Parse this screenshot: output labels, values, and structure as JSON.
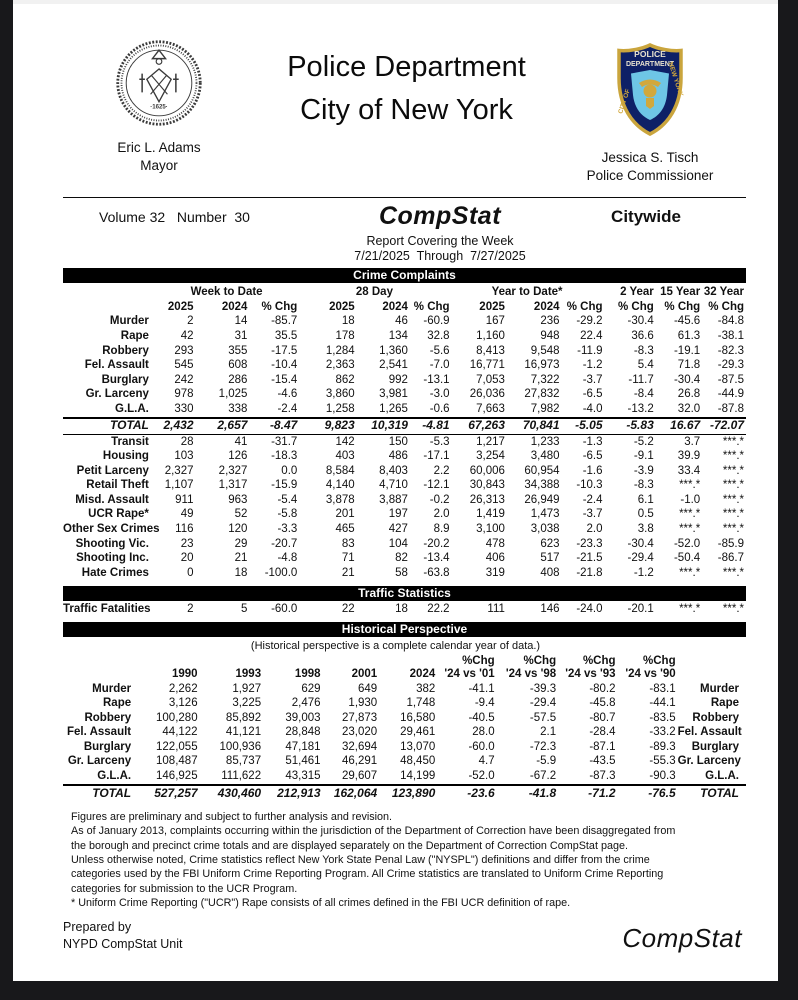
{
  "colors": {
    "seal_gray": "#3a3a3a",
    "patch_navy": "#0e2066",
    "patch_gold": "#d2a83c",
    "patch_light_blue": "#6ec6e6",
    "patch_text": "#e9e3cf",
    "bar_black": "#000000"
  },
  "header": {
    "title_line1": "Police Department",
    "title_line2": "City of New York",
    "mayor_name": "Eric L. Adams",
    "mayor_title": "Mayor",
    "commissioner_name": "Jessica S. Tisch",
    "commissioner_title": "Police Commissioner",
    "patch_text": {
      "line1": "POLICE",
      "line2": "DEPARTMENT",
      "left": "CITY OF",
      "right": "NEW YORK"
    }
  },
  "meta": {
    "volume_number": "Volume 32   Number  30",
    "report_name": "CompStat",
    "scope": "Citywide",
    "covering": "Report Covering the Week",
    "date_range": "7/21/2025  Through  7/27/2025"
  },
  "sections": {
    "crime_complaints": "Crime Complaints",
    "traffic_statistics": "Traffic Statistics",
    "historical_perspective": "Historical Perspective",
    "historical_note": "(Historical perspective is a complete calendar year of data.)"
  },
  "crime_table": {
    "group_headers": [
      "Week to Date",
      "28 Day",
      "Year to Date*",
      "2 Year",
      "15 Year",
      "32 Year"
    ],
    "col_headers": [
      "2025",
      "2024",
      "% Chg",
      "2025",
      "2024",
      "% Chg",
      "2025",
      "2024",
      "% Chg",
      "% Chg",
      "% Chg",
      "% Chg"
    ],
    "rows": [
      {
        "label": "Murder",
        "values": [
          "2",
          "14",
          "-85.7",
          "18",
          "46",
          "-60.9",
          "167",
          "236",
          "-29.2",
          "-30.4",
          "-45.6",
          "-84.8"
        ]
      },
      {
        "label": "Rape",
        "values": [
          "42",
          "31",
          "35.5",
          "178",
          "134",
          "32.8",
          "1,160",
          "948",
          "22.4",
          "36.6",
          "61.3",
          "-38.1"
        ]
      },
      {
        "label": "Robbery",
        "values": [
          "293",
          "355",
          "-17.5",
          "1,284",
          "1,360",
          "-5.6",
          "8,413",
          "9,548",
          "-11.9",
          "-8.3",
          "-19.1",
          "-82.3"
        ]
      },
      {
        "label": "Fel. Assault",
        "values": [
          "545",
          "608",
          "-10.4",
          "2,363",
          "2,541",
          "-7.0",
          "16,771",
          "16,973",
          "-1.2",
          "5.4",
          "71.8",
          "-29.3"
        ]
      },
      {
        "label": "Burglary",
        "values": [
          "242",
          "286",
          "-15.4",
          "862",
          "992",
          "-13.1",
          "7,053",
          "7,322",
          "-3.7",
          "-11.7",
          "-30.4",
          "-87.5"
        ]
      },
      {
        "label": "Gr. Larceny",
        "values": [
          "978",
          "1,025",
          "-4.6",
          "3,860",
          "3,981",
          "-3.0",
          "26,036",
          "27,832",
          "-6.5",
          "-8.4",
          "26.8",
          "-44.9"
        ]
      },
      {
        "label": "G.L.A.",
        "values": [
          "330",
          "338",
          "-2.4",
          "1,258",
          "1,265",
          "-0.6",
          "7,663",
          "7,982",
          "-4.0",
          "-13.2",
          "32.0",
          "-87.8"
        ]
      }
    ],
    "total_rows": [
      {
        "label": "TOTAL",
        "values": [
          "2,432",
          "2,657",
          "-8.47",
          "9,823",
          "10,319",
          "-4.81",
          "67,263",
          "70,841",
          "-5.05",
          "-5.83",
          "16.67",
          "-72.07"
        ]
      }
    ],
    "secondary_rows": [
      {
        "label": "Transit",
        "values": [
          "28",
          "41",
          "-31.7",
          "142",
          "150",
          "-5.3",
          "1,217",
          "1,233",
          "-1.3",
          "-5.2",
          "3.7",
          "***.*"
        ]
      },
      {
        "label": "Housing",
        "values": [
          "103",
          "126",
          "-18.3",
          "403",
          "486",
          "-17.1",
          "3,254",
          "3,480",
          "-6.5",
          "-9.1",
          "39.9",
          "***.*"
        ]
      },
      {
        "label": "Petit Larceny",
        "values": [
          "2,327",
          "2,327",
          "0.0",
          "8,584",
          "8,403",
          "2.2",
          "60,006",
          "60,954",
          "-1.6",
          "-3.9",
          "33.4",
          "***.*"
        ]
      },
      {
        "label": "Retail Theft",
        "values": [
          "1,107",
          "1,317",
          "-15.9",
          "4,140",
          "4,710",
          "-12.1",
          "30,843",
          "34,388",
          "-10.3",
          "-8.3",
          "***.*",
          "***.*"
        ]
      },
      {
        "label": "Misd. Assault",
        "values": [
          "911",
          "963",
          "-5.4",
          "3,878",
          "3,887",
          "-0.2",
          "26,313",
          "26,949",
          "-2.4",
          "6.1",
          "-1.0",
          "***.*"
        ]
      },
      {
        "label": "UCR Rape*",
        "values": [
          "49",
          "52",
          "-5.8",
          "201",
          "197",
          "2.0",
          "1,419",
          "1,473",
          "-3.7",
          "0.5",
          "***.*",
          "***.*"
        ]
      },
      {
        "label": "Other Sex Crimes",
        "values": [
          "116",
          "120",
          "-3.3",
          "465",
          "427",
          "8.9",
          "3,100",
          "3,038",
          "2.0",
          "3.8",
          "***.*",
          "***.*"
        ]
      },
      {
        "label": "Shooting Vic.",
        "values": [
          "23",
          "29",
          "-20.7",
          "83",
          "104",
          "-20.2",
          "478",
          "623",
          "-23.3",
          "-30.4",
          "-52.0",
          "-85.9"
        ]
      },
      {
        "label": "Shooting Inc.",
        "values": [
          "20",
          "21",
          "-4.8",
          "71",
          "82",
          "-13.4",
          "406",
          "517",
          "-21.5",
          "-29.4",
          "-50.4",
          "-86.7"
        ]
      },
      {
        "label": "Hate Crimes",
        "values": [
          "0",
          "18",
          "-100.0",
          "21",
          "58",
          "-63.8",
          "319",
          "408",
          "-21.8",
          "-1.2",
          "***.*",
          "***.*"
        ]
      }
    ]
  },
  "traffic_table": {
    "rows": [
      {
        "label": "Traffic Fatalities",
        "values": [
          "2",
          "5",
          "-60.0",
          "22",
          "18",
          "22.2",
          "111",
          "146",
          "-24.0",
          "-20.1",
          "***.*",
          "***.*"
        ]
      }
    ]
  },
  "historical_table": {
    "chg_header": "%Chg",
    "col_headers": [
      "1990",
      "1993",
      "1998",
      "2001",
      "2024",
      "'24 vs '01",
      "'24 vs '98",
      "'24 vs '93",
      "'24 vs '90"
    ],
    "rows": [
      {
        "label": "Murder",
        "values": [
          "2,262",
          "1,927",
          "629",
          "649",
          "382",
          "-41.1",
          "-39.3",
          "-80.2",
          "-83.1"
        ]
      },
      {
        "label": "Rape",
        "values": [
          "3,126",
          "3,225",
          "2,476",
          "1,930",
          "1,748",
          "-9.4",
          "-29.4",
          "-45.8",
          "-44.1"
        ]
      },
      {
        "label": "Robbery",
        "values": [
          "100,280",
          "85,892",
          "39,003",
          "27,873",
          "16,580",
          "-40.5",
          "-57.5",
          "-80.7",
          "-83.5"
        ]
      },
      {
        "label": "Fel. Assault",
        "values": [
          "44,122",
          "41,121",
          "28,848",
          "23,020",
          "29,461",
          "28.0",
          "2.1",
          "-28.4",
          "-33.2"
        ]
      },
      {
        "label": "Burglary",
        "values": [
          "122,055",
          "100,936",
          "47,181",
          "32,694",
          "13,070",
          "-60.0",
          "-72.3",
          "-87.1",
          "-89.3"
        ]
      },
      {
        "label": "Gr. Larceny",
        "values": [
          "108,487",
          "85,737",
          "51,461",
          "46,291",
          "48,450",
          "4.7",
          "-5.9",
          "-43.5",
          "-55.3"
        ]
      },
      {
        "label": "G.L.A.",
        "values": [
          "146,925",
          "111,622",
          "43,315",
          "29,607",
          "14,199",
          "-52.0",
          "-67.2",
          "-87.3",
          "-90.3"
        ]
      }
    ],
    "total_rows": [
      {
        "label": "TOTAL",
        "values": [
          "527,257",
          "430,460",
          "212,913",
          "162,064",
          "123,890",
          "-23.6",
          "-41.8",
          "-71.2",
          "-76.5"
        ]
      }
    ]
  },
  "footnotes": [
    "Figures are preliminary and subject to further analysis and revision.",
    "As of January 2013, complaints occurring within the jurisdiction of the Department of Correction have been disaggregated from the borough and precinct crime totals and are displayed separately on the Department of Correction CompStat page.",
    "Unless otherwise noted, Crime statistics reflect New York State Penal Law (\"NYSPL\") definitions and differ from the crime categories used by the FBI Uniform Crime Reporting Program. All Crime statistics are translated to Uniform Crime Reporting categories for submission to the UCR Program.",
    "* Uniform Crime Reporting (\"UCR\") Rape consists of all crimes defined in the FBI UCR definition of rape."
  ],
  "footer": {
    "prepared_line1": "Prepared by",
    "prepared_line2": "NYPD CompStat Unit",
    "logo": "CompStat"
  }
}
